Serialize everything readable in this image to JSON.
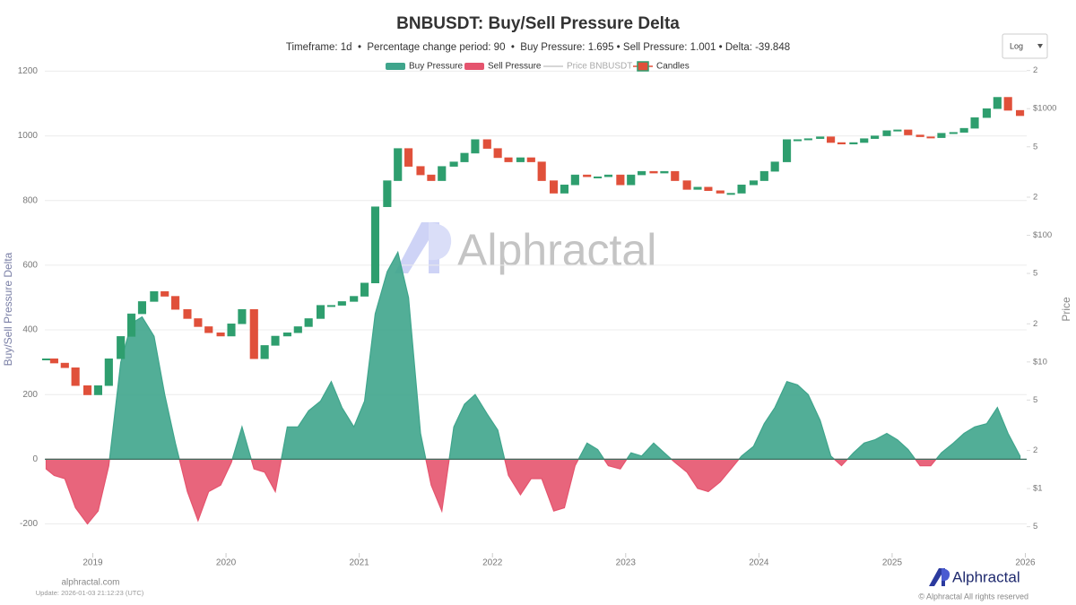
{
  "chart_data": {
    "type": "area",
    "title": "BNBUSDT: Buy/Sell Pressure Delta",
    "subtitle": "Timeframe: 1d  •  Percentage change period: 90  •  Buy Pressure: 1.695 • Sell Pressure: 1.001 • Delta: -39.848",
    "ylabel": "Buy/Sell Pressure Delta",
    "y2label": "Price",
    "x": [
      2018.65,
      2018.71,
      2018.79,
      2018.87,
      2018.96,
      2019.04,
      2019.12,
      2019.21,
      2019.29,
      2019.37,
      2019.46,
      2019.54,
      2019.62,
      2019.71,
      2019.79,
      2019.87,
      2019.96,
      2020.04,
      2020.12,
      2020.21,
      2020.29,
      2020.37,
      2020.46,
      2020.54,
      2020.62,
      2020.71,
      2020.79,
      2020.87,
      2020.96,
      2021.04,
      2021.12,
      2021.21,
      2021.29,
      2021.37,
      2021.46,
      2021.54,
      2021.62,
      2021.71,
      2021.79,
      2021.87,
      2021.96,
      2022.04,
      2022.12,
      2022.21,
      2022.29,
      2022.37,
      2022.46,
      2022.54,
      2022.62,
      2022.71,
      2022.79,
      2022.87,
      2022.96,
      2023.04,
      2023.12,
      2023.21,
      2023.29,
      2023.37,
      2023.46,
      2023.54,
      2023.62,
      2023.71,
      2023.79,
      2023.87,
      2023.96,
      2024.04,
      2024.12,
      2024.21,
      2024.29,
      2024.37,
      2024.46,
      2024.54,
      2024.62,
      2024.71,
      2024.79,
      2024.87,
      2024.96,
      2025.04,
      2025.12,
      2025.21,
      2025.29,
      2025.37,
      2025.46,
      2025.54,
      2025.62,
      2025.71,
      2025.79,
      2025.87,
      2025.96
    ],
    "xlim": [
      2018.64,
      2026.01
    ],
    "xticks": [
      2019,
      2020,
      2021,
      2022,
      2023,
      2024,
      2025,
      2026
    ],
    "ylim": [
      -290,
      1240
    ],
    "yticks": [
      -200,
      0,
      200,
      400,
      600,
      800,
      1000,
      1200
    ],
    "y2lim": [
      0.31,
      2500
    ],
    "y2_log": true,
    "y2ticks": [
      {
        "value": 0.5,
        "label": "5"
      },
      {
        "value": 1,
        "label": "$1"
      },
      2,
      5,
      {
        "value": 10,
        "label": "$10"
      },
      {
        "value": 20,
        "label": "2"
      },
      {
        "value": 50,
        "label": "5"
      },
      {
        "value": 100,
        "label": "$100"
      },
      {
        "value": 200,
        "label": "2"
      },
      {
        "value": 500,
        "label": "5"
      },
      {
        "value": 1000,
        "label": "$1000"
      },
      {
        "value": 2000,
        "label": "2"
      }
    ],
    "grid": true,
    "legend": "top",
    "series": [
      {
        "name": "Buy Pressure",
        "color": "#3fa58c",
        "values": [
          null,
          null,
          null,
          null,
          null,
          null,
          null,
          300,
          420,
          440,
          380,
          200,
          50,
          null,
          null,
          null,
          null,
          null,
          100,
          null,
          null,
          null,
          100,
          100,
          150,
          180,
          240,
          160,
          100,
          180,
          450,
          580,
          640,
          500,
          80,
          null,
          null,
          100,
          170,
          200,
          140,
          90,
          null,
          null,
          null,
          null,
          null,
          null,
          null,
          50,
          30,
          null,
          null,
          20,
          10,
          50,
          20,
          null,
          null,
          null,
          null,
          null,
          null,
          10,
          40,
          110,
          160,
          240,
          230,
          200,
          120,
          10,
          null,
          20,
          50,
          60,
          80,
          60,
          30,
          null,
          null,
          20,
          50,
          80,
          100,
          110,
          160,
          80,
          10
        ]
      },
      {
        "name": "Sell Pressure",
        "color": "#e5546e",
        "values": [
          -30,
          -50,
          -60,
          -150,
          -200,
          -160,
          -20,
          null,
          null,
          null,
          null,
          null,
          null,
          -100,
          -190,
          -100,
          -80,
          -10,
          null,
          -30,
          -40,
          -100,
          null,
          null,
          null,
          null,
          null,
          null,
          null,
          null,
          null,
          null,
          null,
          null,
          null,
          -80,
          -160,
          null,
          null,
          null,
          null,
          null,
          -50,
          -110,
          -60,
          -60,
          -160,
          -150,
          -20,
          null,
          null,
          -20,
          -30,
          null,
          null,
          null,
          null,
          -10,
          -40,
          -90,
          -100,
          -70,
          -30,
          null,
          null,
          null,
          null,
          null,
          null,
          null,
          null,
          null,
          -20,
          null,
          null,
          null,
          null,
          null,
          null,
          -20,
          -20,
          null,
          null,
          null,
          null,
          null,
          null,
          null,
          null
        ]
      },
      {
        "name": "Price BNBUSDT",
        "color": "#c8c8c8",
        "visible": false
      },
      {
        "name": "Candles",
        "type": "candlestick",
        "axis": "y2",
        "up_color": "#2e9e6e",
        "down_color": "#e0503a",
        "values": [
          10.6,
          9.8,
          9,
          6.5,
          5.5,
          6.5,
          10.6,
          15.9,
          24,
          30,
          36,
          33,
          26,
          22,
          19,
          17,
          16,
          20,
          26,
          10.6,
          13.5,
          16,
          17,
          19,
          22,
          28,
          28,
          30,
          33,
          42,
          168,
          270,
          485,
          350,
          300,
          270,
          350,
          380,
          445,
          570,
          485,
          410,
          380,
          410,
          380,
          270,
          215,
          250,
          300,
          290,
          290,
          300,
          250,
          300,
          320,
          310,
          320,
          270,
          230,
          240,
          225,
          215,
          215,
          250,
          270,
          320,
          380,
          570,
          570,
          580,
          600,
          540,
          525,
          540,
          580,
          610,
          670,
          680,
          620,
          600,
          590,
          640,
          650,
          700,
          850,
          1000,
          1230,
          970,
          880
        ]
      }
    ]
  },
  "scale_selector": "Log",
  "watermark": "Alphractal",
  "footer": {
    "site": "alphractal.com",
    "update": "Update: 2026-01-03 21:12:23 (UTC)",
    "brand": "Alphractal",
    "copyright": "© Alphractal All rights reserved"
  }
}
